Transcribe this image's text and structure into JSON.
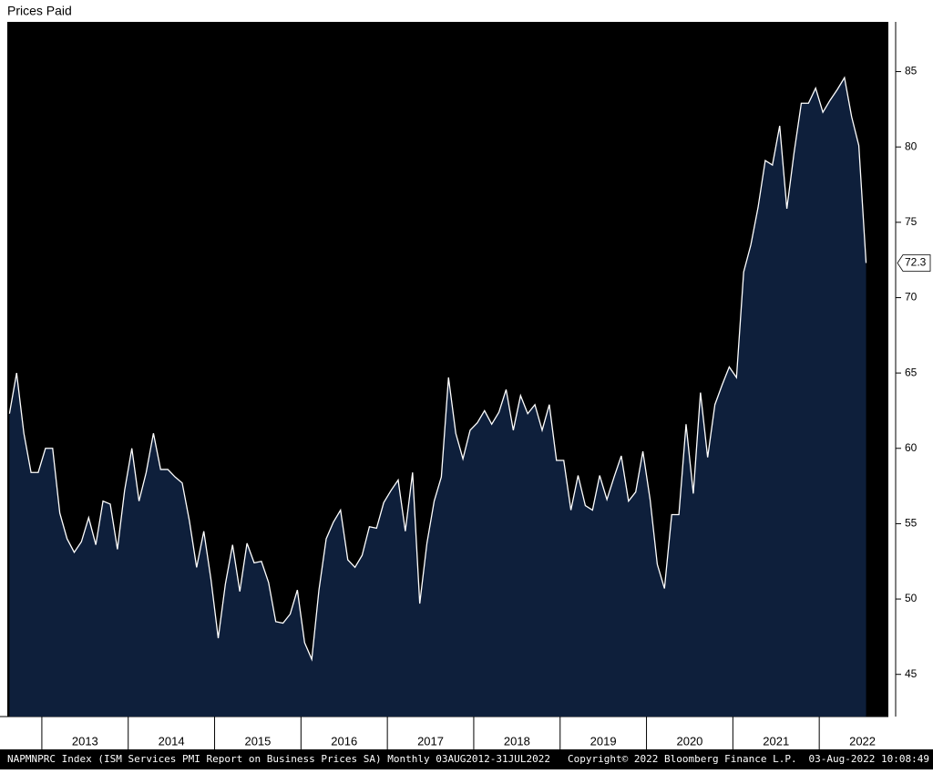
{
  "chart_data": {
    "type": "area",
    "title": "Prices Paid",
    "x": [
      2012.625,
      2012.708,
      2012.792,
      2012.875,
      2012.958,
      2013.042,
      2013.125,
      2013.208,
      2013.292,
      2013.375,
      2013.458,
      2013.542,
      2013.625,
      2013.708,
      2013.792,
      2013.875,
      2013.958,
      2014.042,
      2014.125,
      2014.208,
      2014.292,
      2014.375,
      2014.458,
      2014.542,
      2014.625,
      2014.708,
      2014.792,
      2014.875,
      2014.958,
      2015.042,
      2015.125,
      2015.208,
      2015.292,
      2015.375,
      2015.458,
      2015.542,
      2015.625,
      2015.708,
      2015.792,
      2015.875,
      2015.958,
      2016.042,
      2016.125,
      2016.208,
      2016.292,
      2016.375,
      2016.458,
      2016.542,
      2016.625,
      2016.708,
      2016.792,
      2016.875,
      2016.958,
      2017.042,
      2017.125,
      2017.208,
      2017.292,
      2017.375,
      2017.458,
      2017.542,
      2017.625,
      2017.708,
      2017.792,
      2017.875,
      2017.958,
      2018.042,
      2018.125,
      2018.208,
      2018.292,
      2018.375,
      2018.458,
      2018.542,
      2018.625,
      2018.708,
      2018.792,
      2018.875,
      2018.958,
      2019.042,
      2019.125,
      2019.208,
      2019.292,
      2019.375,
      2019.458,
      2019.542,
      2019.625,
      2019.708,
      2019.792,
      2019.875,
      2019.958,
      2020.042,
      2020.125,
      2020.208,
      2020.292,
      2020.375,
      2020.458,
      2020.542,
      2020.625,
      2020.708,
      2020.792,
      2020.875,
      2020.958,
      2021.042,
      2021.125,
      2021.208,
      2021.292,
      2021.375,
      2021.458,
      2021.542,
      2021.625,
      2021.708,
      2021.792,
      2021.875,
      2021.958,
      2022.042,
      2022.125,
      2022.208,
      2022.292,
      2022.375,
      2022.458,
      2022.542
    ],
    "values": [
      62.3,
      65.0,
      61.0,
      58.4,
      58.4,
      60.0,
      60.0,
      55.7,
      54.0,
      53.1,
      53.8,
      55.4,
      53.6,
      56.5,
      56.3,
      53.3,
      57.2,
      60.0,
      56.5,
      58.4,
      61.0,
      58.6,
      58.6,
      58.1,
      57.7,
      55.2,
      52.1,
      54.5,
      51.3,
      47.4,
      51.0,
      53.6,
      50.5,
      53.7,
      52.4,
      52.5,
      51.1,
      48.5,
      48.4,
      49.0,
      50.6,
      47.1,
      46.0,
      50.6,
      54.0,
      55.1,
      55.9,
      52.6,
      52.1,
      52.9,
      54.8,
      54.7,
      56.4,
      57.2,
      57.9,
      54.5,
      58.4,
      49.7,
      53.7,
      56.5,
      58.1,
      64.7,
      61.0,
      59.3,
      61.2,
      61.7,
      62.5,
      61.6,
      62.4,
      63.9,
      61.2,
      63.5,
      62.3,
      62.9,
      61.2,
      62.9,
      59.2,
      59.2,
      55.9,
      58.2,
      56.2,
      55.9,
      58.2,
      56.6,
      58.1,
      59.5,
      56.5,
      57.1,
      59.8,
      56.6,
      52.3,
      50.7,
      55.6,
      55.6,
      61.6,
      57.0,
      63.7,
      59.4,
      62.9,
      64.2,
      65.4,
      64.7,
      71.7,
      73.5,
      76.0,
      79.1,
      78.8,
      81.4,
      75.9,
      79.6,
      82.9,
      82.9,
      83.9,
      82.3,
      83.1,
      83.8,
      84.6,
      82.0,
      80.1,
      72.3
    ],
    "fill_color": "#0e1f3b",
    "line_color": "#ffffff",
    "background": "#000000",
    "xlim": [
      2012.6,
      2022.8
    ],
    "ylim": [
      42.2,
      88.3
    ],
    "yticks": [
      45,
      50,
      55,
      60,
      65,
      70,
      75,
      80,
      85
    ],
    "xticks": [
      {
        "value": 2013.5,
        "label": "2013"
      },
      {
        "value": 2014.5,
        "label": "2014"
      },
      {
        "value": 2015.5,
        "label": "2015"
      },
      {
        "value": 2016.5,
        "label": "2016"
      },
      {
        "value": 2017.5,
        "label": "2017"
      },
      {
        "value": 2018.5,
        "label": "2018"
      },
      {
        "value": 2019.5,
        "label": "2019"
      },
      {
        "value": 2020.5,
        "label": "2020"
      },
      {
        "value": 2021.5,
        "label": "2021"
      },
      {
        "value": 2022.5,
        "label": "2022"
      }
    ],
    "xtick_marks": [
      2013,
      2014,
      2015,
      2016,
      2017,
      2018,
      2019,
      2020,
      2021,
      2022
    ],
    "footer": {
      "source": "NAPMNPRC Index (ISM Services PMI Report on Business Prices SA) Monthly 03AUG2012-31JUL2022",
      "copyright": "Copyright© 2022 Bloomberg Finance L.P.",
      "timestamp": "03-Aug-2022 10:08:49"
    }
  }
}
